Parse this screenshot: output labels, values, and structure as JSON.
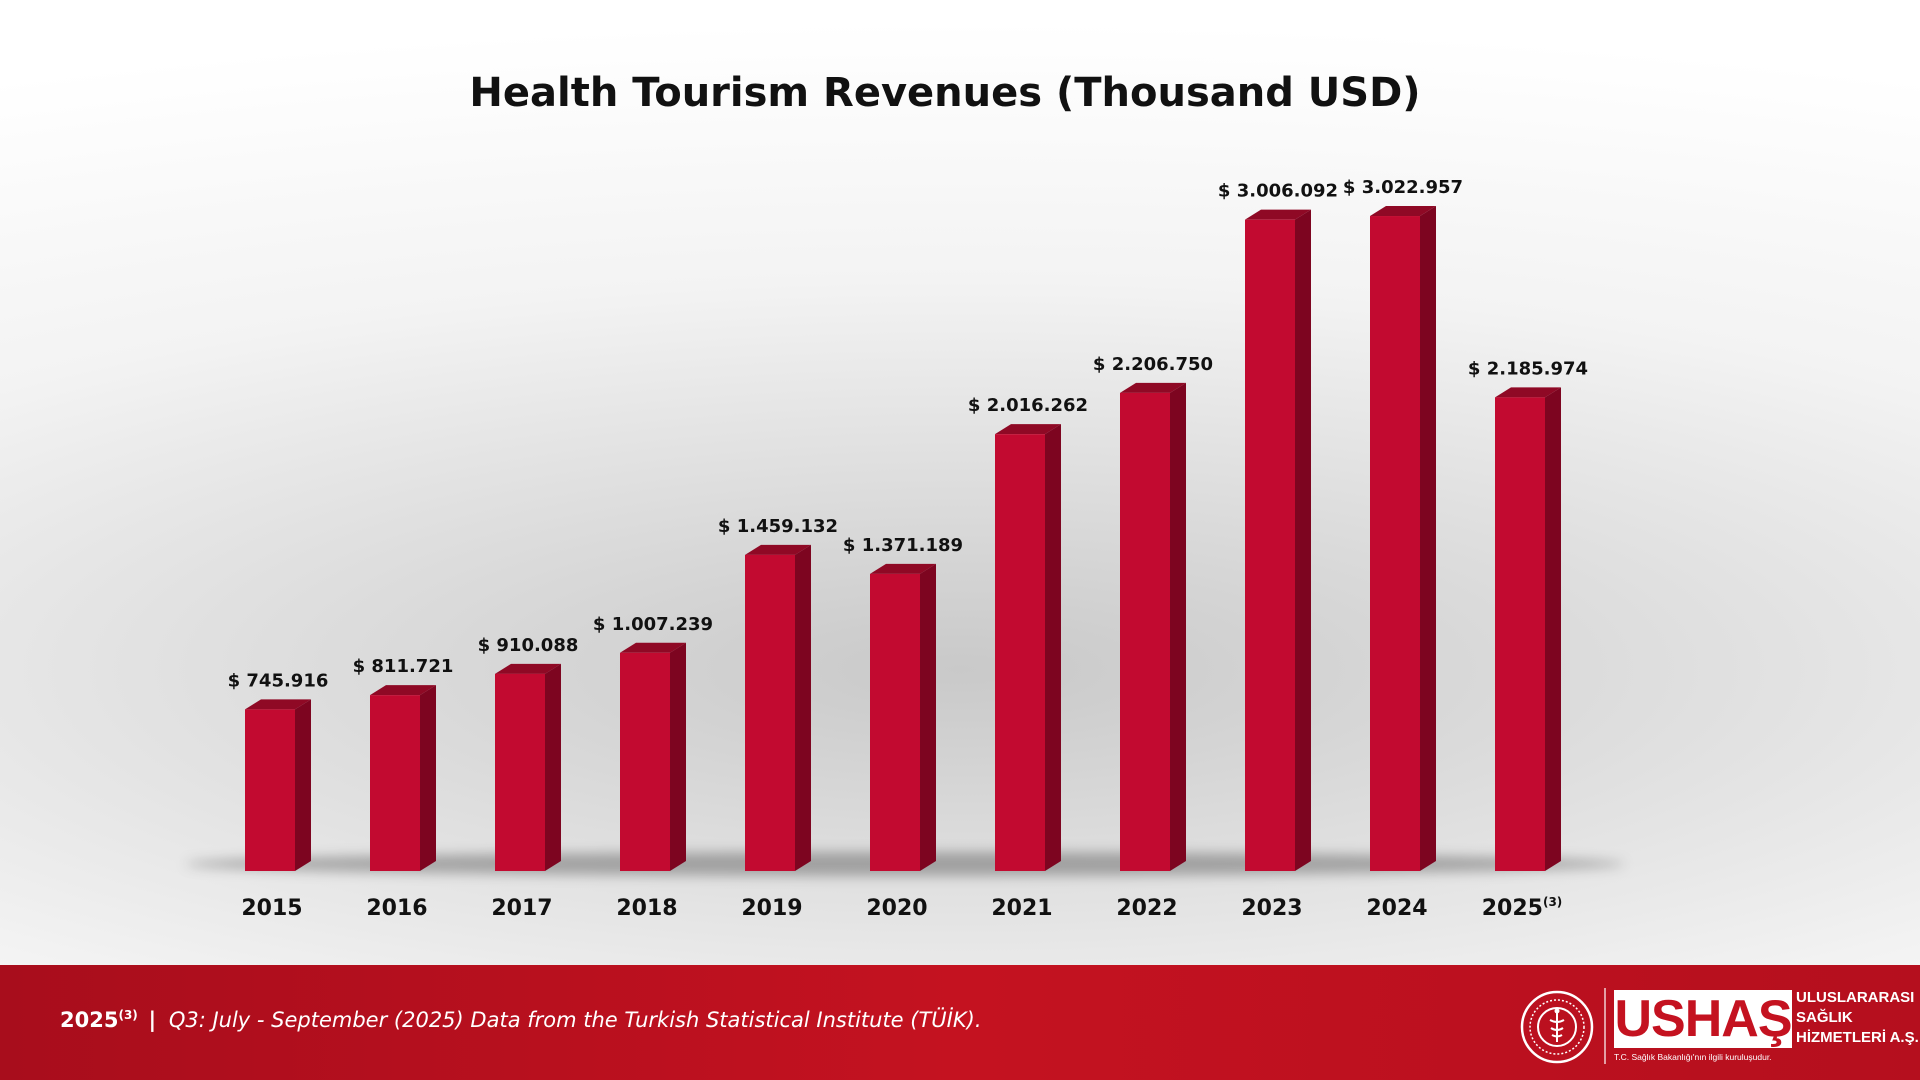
{
  "chart_data": {
    "type": "bar",
    "title": "Health Tourism Revenues (Thousand USD)",
    "categories": [
      "2015",
      "2016",
      "2017",
      "2018",
      "2019",
      "2020",
      "2021",
      "2022",
      "2023",
      "2024",
      "2025"
    ],
    "category_notes": [
      "",
      "",
      "",
      "",
      "",
      "",
      "",
      "",
      "",
      "",
      "(3)"
    ],
    "values": [
      745916,
      811721,
      910088,
      1007239,
      1459132,
      1371189,
      2016262,
      2206750,
      3006092,
      3022957,
      2185974
    ],
    "value_labels": [
      "$ 745.916",
      "$ 811.721",
      "$ 910.088",
      "$ 1.007.239",
      "$ 1.459.132",
      "$ 1.371.189",
      "$ 2.016.262",
      "$ 2.206.750",
      "$ 3.006.092",
      "$ 3.022.957",
      "$ 2.185.974"
    ],
    "ylim": [
      0,
      3000000
    ],
    "grid": false,
    "legend": "none",
    "bar_color": "#c20a30",
    "bar_side_color": "#7d0520",
    "bar_top_color": "#8f0925"
  },
  "footer": {
    "year": "2025",
    "year_note": "(3)",
    "separator": "|",
    "note": "Q3: July - September (2025) Data from the Turkish Statistical Institute (TÜİK).",
    "background_color": "#c41220"
  },
  "logo": {
    "wordmark": "USHAŞ",
    "side_text": [
      "ULUSLARARASI",
      "SAĞLIK",
      "HİZMETLERİ A.Ş."
    ],
    "tagline": "T.C. Sağlık Bakanlığı'nın ilgili kuruluşudur.",
    "emblem_icon": "ministry-of-health-seal-icon"
  }
}
